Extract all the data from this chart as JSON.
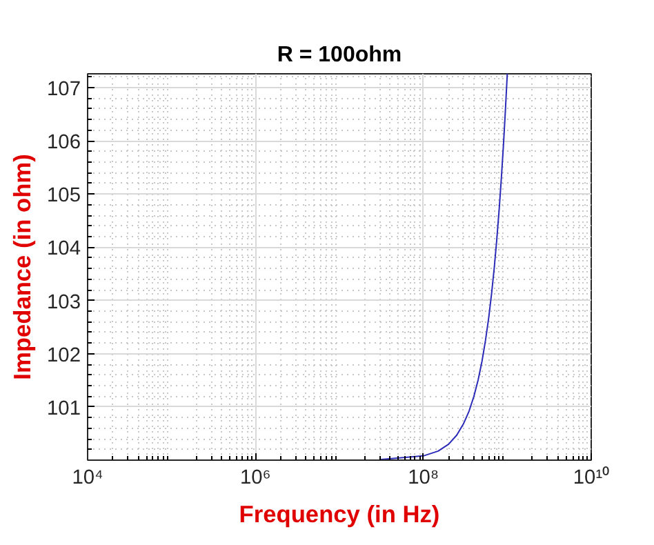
{
  "chart_data": {
    "type": "line",
    "title": "R = 100ohm",
    "xlabel": "Frequency (in Hz)",
    "ylabel": "Impedance (in ohm)",
    "x": [
      30000000,
      100000000,
      150000000,
      200000000,
      250000000,
      300000000,
      350000000,
      400000000,
      450000000,
      500000000,
      550000000,
      600000000,
      650000000,
      700000000,
      750000000,
      800000000,
      850000000,
      900000000,
      950000000,
      1000000000
    ],
    "series": [
      {
        "color": "#2b2bb8",
        "values": [
          100.01,
          100.08,
          100.17,
          100.3,
          100.47,
          100.68,
          100.92,
          101.2,
          101.51,
          101.86,
          102.25,
          102.67,
          103.13,
          103.62,
          104.15,
          104.71,
          105.3,
          105.92,
          106.58,
          107.26
        ]
      }
    ],
    "xlim": [
      10000,
      10000000000
    ],
    "ylim": [
      100,
      107.26
    ],
    "xticks": [
      {
        "value": 10000,
        "label": "10⁴"
      },
      {
        "value": 1000000,
        "label": "10⁶"
      },
      {
        "value": 100000000,
        "label": "10⁸"
      },
      {
        "value": 10000000000,
        "label": "10¹⁰"
      }
    ],
    "yticks": [
      101,
      102,
      103,
      104,
      105,
      106,
      107
    ],
    "log": "x",
    "grid": true
  }
}
